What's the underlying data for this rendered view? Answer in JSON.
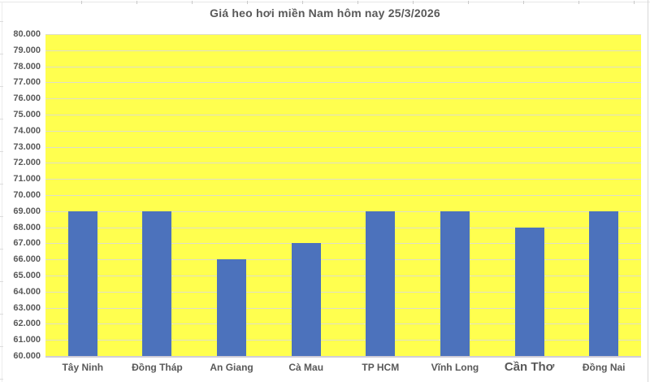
{
  "chart_data": {
    "type": "bar",
    "title": "Giá heo hơi miền Nam hôm nay 25/3/2026",
    "categories": [
      "Tây Ninh",
      "Đồng Tháp",
      "An Giang",
      "Cà Mau",
      "TP HCM",
      "Vĩnh Long",
      "Cần Thơ",
      "Đồng Nai"
    ],
    "values": [
      69000,
      69000,
      66000,
      67000,
      69000,
      69000,
      68000,
      69000
    ],
    "emphasized_label": "Cần Thơ",
    "xlabel": "",
    "ylabel": "",
    "ylim": [
      60000,
      80000
    ],
    "ytick_step": 1000,
    "ytick_labels": [
      "80.000",
      "79.000",
      "78.000",
      "77.000",
      "76.000",
      "75.000",
      "74.000",
      "73.000",
      "72.000",
      "71.000",
      "70.000",
      "69.000",
      "68.000",
      "67.000",
      "66.000",
      "65.000",
      "64.000",
      "63.000",
      "62.000",
      "61.000",
      "60.000"
    ],
    "grid": true,
    "legend": false,
    "colors": {
      "bar": "#4C72BC",
      "plot_bg": "#FFFF4F",
      "gridline": "#DEDEC9",
      "axis_line": "#CFCDD8",
      "text": "#595959"
    }
  }
}
